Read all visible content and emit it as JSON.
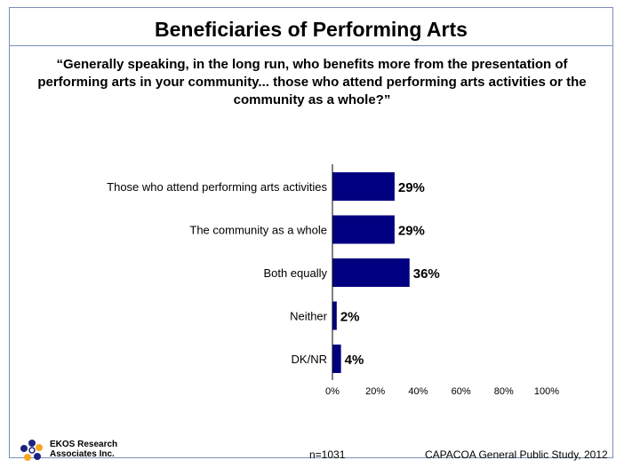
{
  "title": "Beneficiaries of Performing Arts",
  "question": "“Generally speaking, in the long run, who benefits more from the presentation of performing arts in your community... those who attend performing arts activities or the community as a whole?”",
  "chart_data": {
    "type": "bar",
    "orientation": "horizontal",
    "categories": [
      "Those who attend performing arts activities",
      "The community as a whole",
      "Both equally",
      "Neither",
      "DK/NR"
    ],
    "values": [
      29,
      29,
      36,
      2,
      4
    ],
    "value_labels": [
      "29%",
      "29%",
      "36%",
      "2%",
      "4%"
    ],
    "x_ticks": [
      "0%",
      "20%",
      "40%",
      "60%",
      "80%",
      "100%"
    ],
    "xlim": [
      0,
      100
    ],
    "bar_color": "#000080",
    "grid": false
  },
  "logo": {
    "icon": "ekos-logo-icon",
    "line1": "EKOS Research",
    "line2": "Associates Inc."
  },
  "footer": {
    "sample": "n=1031",
    "source": "CAPACOA General Public Study, 2012"
  }
}
